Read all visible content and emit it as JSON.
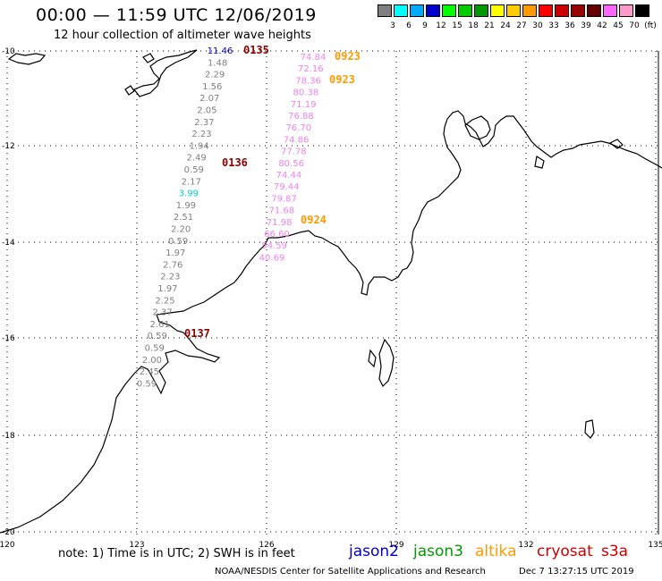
{
  "header": {
    "title": "00:00 — 11:59 UTC 12/06/2019",
    "subtitle": "12 hour collection of altimeter wave heights"
  },
  "legend": {
    "colors": [
      "#808080",
      "#00ffff",
      "#00aaff",
      "#0000cc",
      "#00ff00",
      "#00cc00",
      "#009900",
      "#ffff00",
      "#ffcc00",
      "#ff9900",
      "#ff0000",
      "#cc0000",
      "#990000",
      "#660000",
      "#ff66ff",
      "#ff99cc",
      "#000000"
    ],
    "labels": [
      "3",
      "6",
      "9",
      "12",
      "15",
      "18",
      "21",
      "24",
      "27",
      "30",
      "33",
      "36",
      "39",
      "42",
      "45",
      "70",
      "(ft)"
    ]
  },
  "map": {
    "lon_labels": [
      "120",
      "123",
      "126",
      "129",
      "132",
      "135"
    ],
    "lat_labels": [
      "-10",
      "-12",
      "-14",
      "-16",
      "-18",
      "-20"
    ],
    "times": [
      {
        "text": "0135",
        "color": "#8b0000"
      },
      {
        "text": "0923",
        "color": "#ff9900"
      },
      {
        "text": "0923",
        "color": "#ff9900"
      },
      {
        "text": "0136",
        "color": "#8b0000"
      },
      {
        "text": "0924",
        "color": "#ff9900"
      },
      {
        "text": "0137",
        "color": "#8b0000"
      }
    ],
    "track_left": [
      "11.46",
      "1.48",
      "2.29",
      "1.56",
      "2.07",
      "2.05",
      "2.37",
      "2.23",
      "1.94",
      "2.49",
      "0.59",
      "2.17",
      "3.99",
      "1.99",
      "2.51",
      "2.20",
      "0.59",
      "1.97",
      "2.76",
      "2.23",
      "1.97",
      "2.25",
      "2.37",
      "2.61",
      "0.59",
      "0.59",
      "2.00",
      "2.45",
      "0.59"
    ],
    "track_left_colors": [
      "#0000cc",
      "#808080",
      "#808080",
      "#808080",
      "#808080",
      "#808080",
      "#808080",
      "#808080",
      "#808080",
      "#808080",
      "#808080",
      "#808080",
      "#00cccc",
      "#808080",
      "#808080",
      "#808080",
      "#808080",
      "#808080",
      "#808080",
      "#808080",
      "#808080",
      "#808080",
      "#808080",
      "#808080",
      "#808080",
      "#808080",
      "#808080",
      "#808080",
      "#808080"
    ],
    "track_right": [
      "74.84",
      "72.16",
      "78.36",
      "80.38",
      "71.19",
      "76.88",
      "76.70",
      "74.86",
      "77.78",
      "80.56",
      "74.44",
      "79.44",
      "79.87",
      "71.68",
      "71.98",
      "66.60",
      "54.59",
      "40.69"
    ]
  },
  "footer": {
    "note": "note: 1) Time is in UTC; 2) SWH is in feet",
    "satellites": [
      {
        "name": "jason2",
        "color": "#0000cc"
      },
      {
        "name": "jason3",
        "color": "#009900"
      },
      {
        "name": "altika",
        "color": "#ff9900"
      },
      {
        "name": "cryosat",
        "color": "#cc0000"
      },
      {
        "name": "s3a",
        "color": "#cc0000"
      }
    ],
    "credit": "NOAA/NESDIS Center for Satellite Applications and Research",
    "timestamp": "Dec  7 13:27:15 UTC 2019"
  }
}
